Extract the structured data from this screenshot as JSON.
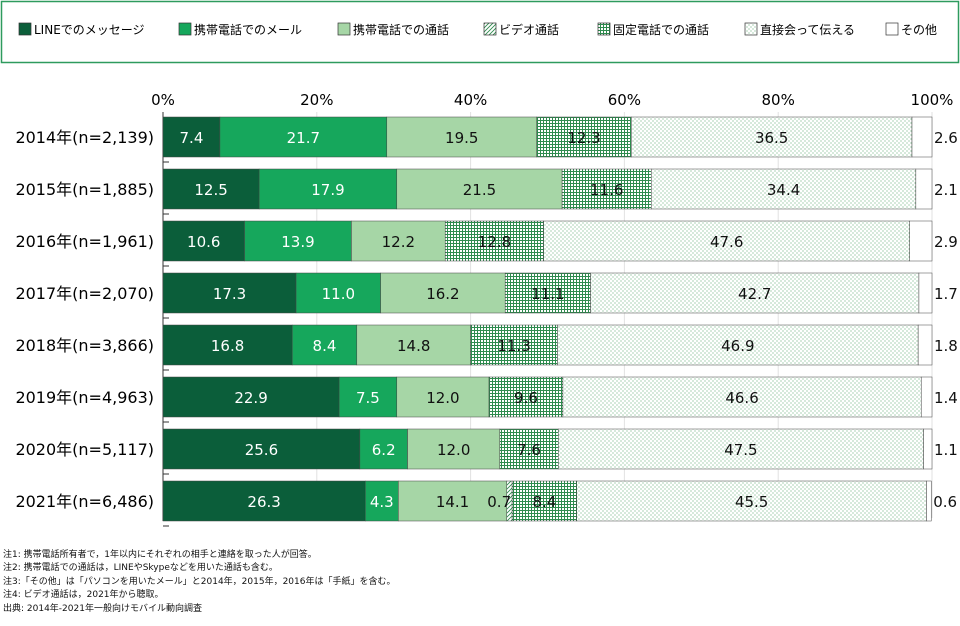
{
  "chart_data": {
    "type": "bar",
    "orientation": "horizontal",
    "stacked": true,
    "percent": true,
    "categories": [
      "2014年(n=2,139)",
      "2015年(n=1,885)",
      "2016年(n=1,961)",
      "2017年(n=2,070)",
      "2018年(n=3,866)",
      "2019年(n=4,963)",
      "2020年(n=5,117)",
      "2021年(n=6,486)"
    ],
    "series": [
      {
        "name": "LINEでのメッセージ",
        "color": "#0b5e3a",
        "pattern": "solid",
        "values": [
          7.4,
          12.5,
          10.6,
          17.3,
          16.8,
          22.9,
          25.6,
          26.3
        ]
      },
      {
        "name": "携帯電話でのメール",
        "color": "#16a75c",
        "pattern": "solid",
        "values": [
          21.7,
          17.9,
          13.9,
          11.0,
          8.4,
          7.5,
          6.2,
          4.3
        ]
      },
      {
        "name": "携帯電話での通話",
        "color": "#a6d6a6",
        "pattern": "solid",
        "values": [
          19.5,
          21.5,
          12.2,
          16.2,
          14.8,
          12.0,
          12.0,
          14.1
        ]
      },
      {
        "name": "ビデオ通話",
        "color": "#2e8b4e",
        "pattern": "diagonal-hatch",
        "values": [
          null,
          null,
          null,
          null,
          null,
          null,
          null,
          0.7
        ]
      },
      {
        "name": "固定電話での通話",
        "color": "#2e8b4e",
        "pattern": "grid",
        "values": [
          12.3,
          11.6,
          12.8,
          11.1,
          11.3,
          9.6,
          7.6,
          8.4
        ]
      },
      {
        "name": "直接会って伝える",
        "color": "#2e8b4e",
        "pattern": "dots",
        "values": [
          36.5,
          34.4,
          47.6,
          42.7,
          46.9,
          46.6,
          47.5,
          45.5
        ]
      },
      {
        "name": "その他",
        "color": "#ffffff",
        "pattern": "solid",
        "values": [
          2.6,
          2.1,
          2.9,
          1.7,
          1.8,
          1.4,
          1.1,
          0.6
        ]
      }
    ],
    "xlim": [
      0,
      100
    ],
    "xticks": [
      "0%",
      "20%",
      "40%",
      "60%",
      "80%",
      "100%"
    ],
    "legend_position": "top",
    "title": "",
    "xlabel": "",
    "ylabel": ""
  },
  "notes": [
    "注1: 携帯電話所有者で，1年以内にそれぞれの相手と連絡を取った人が回答。",
    "注2: 携帯電話での通話は，LINEやSkypeなどを用いた通話も含む。",
    "注3:「その他」は「パソコンを用いたメール」と2014年，2015年，2016年は「手紙」を含む。",
    "注4: ビデオ通話は，2021年から聴取。",
    "出典: 2014年-2021年一般向けモバイル動向調査"
  ]
}
